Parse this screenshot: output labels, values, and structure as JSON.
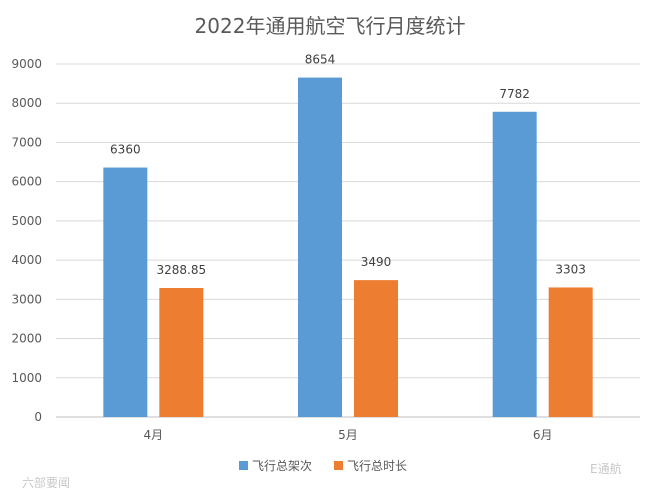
{
  "chart_data": {
    "type": "bar",
    "title": "2022年通用航空飞行月度统计",
    "categories": [
      "4月",
      "5月",
      "6月"
    ],
    "series": [
      {
        "name": "飞行总架次",
        "values": [
          6360,
          8654,
          7782
        ],
        "labels": [
          "6360",
          "8654",
          "7782"
        ],
        "color": "#5b9bd5"
      },
      {
        "name": "飞行总时长",
        "values": [
          3288.85,
          3490,
          3303
        ],
        "labels": [
          "3288.85",
          "3490",
          "3303"
        ],
        "color": "#ed7d31"
      }
    ],
    "ylim": [
      0,
      9000
    ],
    "yticks": [
      0,
      1000,
      2000,
      3000,
      4000,
      5000,
      6000,
      7000,
      8000,
      9000
    ],
    "grid": true,
    "legend_position": "bottom",
    "xlabel": "",
    "ylabel": ""
  },
  "watermarks": {
    "left": "六部要闻",
    "right": "E通航"
  }
}
